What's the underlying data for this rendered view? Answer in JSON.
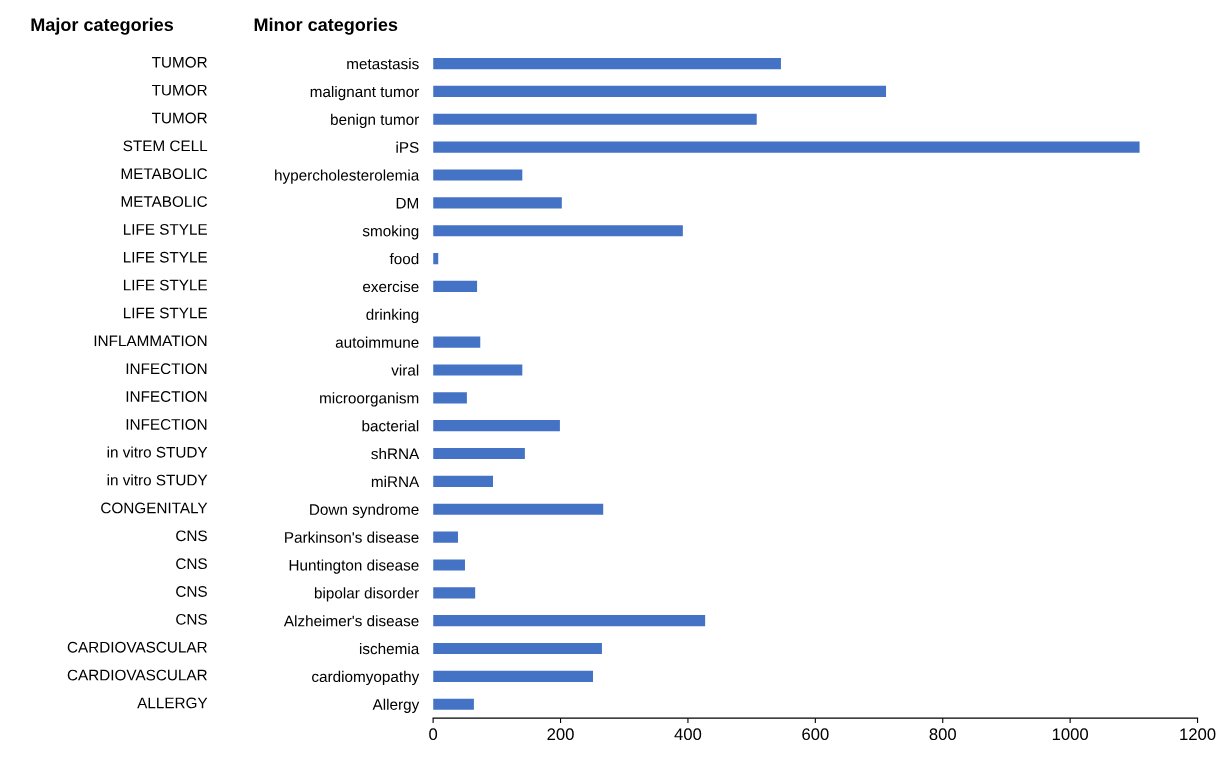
{
  "chart_data": {
    "type": "bar",
    "orientation": "horizontal",
    "annotations": [
      "Major categories",
      "Minor categories"
    ],
    "categories": [
      "metastasis",
      "malignant tumor",
      "benign tumor",
      "iPS",
      "hypercholesterolemia",
      "DM",
      "smoking",
      "food",
      "exercise",
      "drinking",
      "autoimmune",
      "viral",
      "microorganism",
      "bacterial",
      "shRNA",
      "miRNA",
      "Down syndrome",
      "Parkinson's disease",
      "Huntington disease",
      "bipolar disorder",
      "Alzheimer's disease",
      "ischemia",
      "cardiomyopathy",
      "Allergy"
    ],
    "y2_categories": [
      "TUMOR",
      "TUMOR",
      "TUMOR",
      "STEM CELL",
      "METABOLIC",
      "METABOLIC",
      "LIFE STYLE",
      "LIFE STYLE",
      "LIFE STYLE",
      "LIFE STYLE",
      "INFLAMMATION",
      "INFECTION",
      "INFECTION",
      "INFECTION",
      "in vitro STUDY",
      "in vitro STUDY",
      "CONGENITALY",
      "CNS",
      "CNS",
      "CNS",
      "CNS",
      "CARDIOVASCULAR",
      "CARDIOVASCULAR",
      "ALLERGY"
    ],
    "values": [
      546,
      711,
      508,
      1109,
      140,
      202,
      392,
      8,
      69,
      0,
      74,
      140,
      53,
      199,
      144,
      94,
      267,
      39,
      50,
      66,
      427,
      265,
      251,
      64
    ],
    "color": "#4472c4",
    "xlim": [
      0,
      1200
    ],
    "xticks": [
      0,
      200,
      400,
      600,
      800,
      1000,
      1200
    ],
    "grid": false,
    "legend": false
  }
}
